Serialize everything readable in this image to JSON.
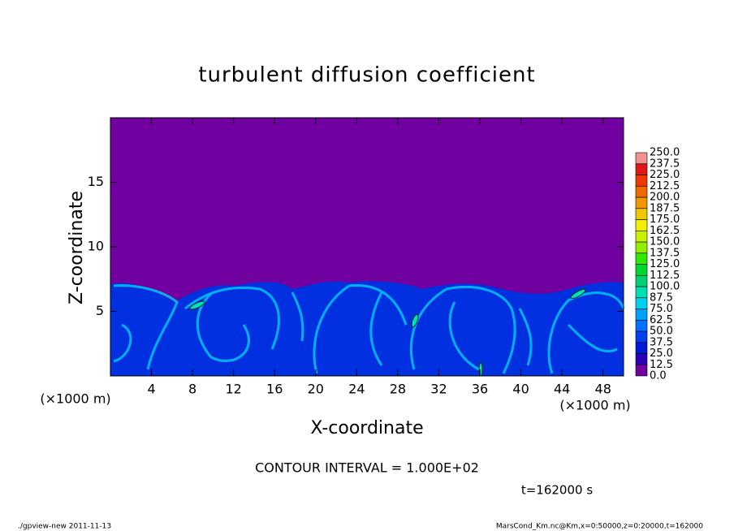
{
  "chart_data": {
    "type": "contour",
    "title": "turbulent diffusion coefficient",
    "xlabel": "X-coordinate",
    "ylabel": "Z-coordinate",
    "x_unit": "(×1000 m)",
    "xlim": [
      0,
      50
    ],
    "xticks": [
      4,
      8,
      12,
      16,
      20,
      24,
      28,
      32,
      36,
      40,
      44,
      48
    ],
    "ylim": [
      0,
      20
    ],
    "yticks": [
      5,
      10,
      15
    ],
    "background_color": "#7000a0",
    "colorbar": {
      "levels": [
        {
          "value": 0,
          "label": "0.0"
        },
        {
          "value": 12.5,
          "label": "12.5"
        },
        {
          "value": 25,
          "label": "25.0"
        },
        {
          "value": 37.5,
          "label": "37.5"
        },
        {
          "value": 50,
          "label": "50.0"
        },
        {
          "value": 62.5,
          "label": "62.5"
        },
        {
          "value": 75,
          "label": "75.0"
        },
        {
          "value": 87.5,
          "label": "87.5"
        },
        {
          "value": 100,
          "label": "100.0"
        },
        {
          "value": 112.5,
          "label": "112.5"
        },
        {
          "value": 125,
          "label": "125.0"
        },
        {
          "value": 137.5,
          "label": "137.5"
        },
        {
          "value": 150,
          "label": "150.0"
        },
        {
          "value": 162.5,
          "label": "162.5"
        },
        {
          "value": 175,
          "label": "175.0"
        },
        {
          "value": 187.5,
          "label": "187.5"
        },
        {
          "value": 200,
          "label": "200.0"
        },
        {
          "value": 212.5,
          "label": "212.5"
        },
        {
          "value": 225,
          "label": "225.0"
        },
        {
          "value": 237.5,
          "label": "237.5"
        },
        {
          "value": 250,
          "label": "250.0"
        }
      ],
      "colors": [
        "#7000a0",
        "#2a00b8",
        "#0018d8",
        "#0040f0",
        "#0070ff",
        "#00a0ff",
        "#00d0f0",
        "#00e0b0",
        "#00d070",
        "#00d830",
        "#30e800",
        "#90f000",
        "#c8f000",
        "#f0f000",
        "#f0c800",
        "#f09800",
        "#f06800",
        "#f03800",
        "#e01818",
        "#f09090"
      ]
    },
    "contour_interval": "CONTOUR INTERVAL = 1.000E+02",
    "time_label": "t=162000 s",
    "footer_left": "./gpview-new  2011-11-13",
    "footer_right": "MarsCond_Km.nc@Km,x=0:50000,z=0:20000,t=162000"
  }
}
